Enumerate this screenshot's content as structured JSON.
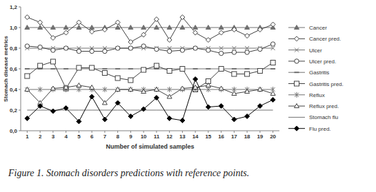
{
  "chart_data": {
    "type": "line",
    "x_label": "Number of simulated samples",
    "y_label": "Stomach disease metrics",
    "caption": "Figure 1. Stomach disorders predictions with reference points.",
    "categories": [
      "1",
      "2",
      "3",
      "4",
      "5",
      "6",
      "7",
      "8",
      "9",
      "10",
      "11",
      "12",
      "13",
      "14",
      "15",
      "16",
      "17",
      "18",
      "19",
      "20"
    ],
    "ylim": [
      0,
      1.2
    ],
    "yticks": [
      {
        "value": 0,
        "label": "0,0"
      },
      {
        "value": 0.2,
        "label": "0,2"
      },
      {
        "value": 0.4,
        "label": "0,4"
      },
      {
        "value": 0.6,
        "label": "0,6"
      },
      {
        "value": 0.8,
        "label": "0,8"
      },
      {
        "value": 1.0,
        "label": "1,0"
      },
      {
        "value": 1.2,
        "label": "1,2"
      }
    ],
    "grid": false,
    "legend": "right",
    "series": [
      {
        "name": "Cancer",
        "color": "#707070",
        "marker": "triangle",
        "values": [
          1,
          1,
          1,
          1,
          1,
          1,
          1,
          1,
          1,
          1,
          1,
          1,
          1,
          1,
          1,
          1,
          1,
          1,
          1,
          1
        ]
      },
      {
        "name": "Cancer pred.",
        "color": "#404040",
        "marker": "diamond-open",
        "values": [
          1.1,
          1.05,
          0.9,
          0.95,
          1.05,
          0.96,
          0.98,
          1.05,
          0.86,
          0.93,
          1.08,
          0.88,
          1.1,
          0.95,
          0.88,
          0.95,
          0.98,
          0.92,
          0.98,
          1.03
        ]
      },
      {
        "name": "Ulcer",
        "color": "#707070",
        "marker": "x",
        "values": [
          0.8,
          0.8,
          0.8,
          0.8,
          0.8,
          0.8,
          0.8,
          0.8,
          0.8,
          0.8,
          0.8,
          0.8,
          0.8,
          0.8,
          0.8,
          0.8,
          0.8,
          0.8,
          0.8,
          0.8
        ]
      },
      {
        "name": "Ulcer pred.",
        "color": "#404040",
        "marker": "circle-open",
        "values": [
          0.82,
          0.81,
          0.78,
          0.8,
          0.77,
          0.77,
          0.77,
          0.8,
          0.8,
          0.82,
          0.79,
          0.77,
          0.78,
          0.8,
          0.78,
          0.75,
          0.76,
          0.76,
          0.79,
          0.84
        ]
      },
      {
        "name": "Gastritis",
        "color": "#707070",
        "marker": "dash",
        "values": [
          0.6,
          0.6,
          0.6,
          0.6,
          0.6,
          0.6,
          0.6,
          0.6,
          0.6,
          0.6,
          0.6,
          0.6,
          0.6,
          0.6,
          0.6,
          0.6,
          0.6,
          0.6,
          0.6,
          0.6
        ]
      },
      {
        "name": "Gastritis pred.",
        "color": "#404040",
        "marker": "square-open",
        "values": [
          0.53,
          0.63,
          0.67,
          0.41,
          0.61,
          0.61,
          0.56,
          0.51,
          0.49,
          0.59,
          0.63,
          0.58,
          0.6,
          0.4,
          0.48,
          0.6,
          0.55,
          0.55,
          0.58,
          0.66
        ]
      },
      {
        "name": "Reflux",
        "color": "#707070",
        "marker": "star",
        "values": [
          0.4,
          0.4,
          0.4,
          0.4,
          0.4,
          0.4,
          0.4,
          0.4,
          0.4,
          0.4,
          0.4,
          0.4,
          0.4,
          0.4,
          0.4,
          0.4,
          0.4,
          0.4,
          0.4,
          0.4
        ]
      },
      {
        "name": "Reflux pred.",
        "color": "#404040",
        "marker": "triangle-open",
        "values": [
          0.4,
          0.27,
          0.41,
          0.42,
          0.44,
          0.42,
          0.27,
          0.4,
          0.4,
          0.38,
          0.4,
          0.33,
          0.41,
          0.42,
          0.44,
          0.41,
          0.36,
          0.38,
          0.4,
          0.36
        ]
      },
      {
        "name": "Stomach flu",
        "color": "#707070",
        "marker": "none",
        "values": [
          0.2,
          0.2,
          0.2,
          0.2,
          0.2,
          0.2,
          0.2,
          0.2,
          0.2,
          0.2,
          0.2,
          0.2,
          0.2,
          0.2,
          0.2,
          0.2,
          0.2,
          0.2,
          0.2,
          0.2
        ]
      },
      {
        "name": "Flu pred.",
        "color": "#000000",
        "marker": "diamond",
        "values": [
          0.12,
          0.24,
          0.19,
          0.22,
          0.09,
          0.33,
          0.11,
          0.27,
          0.14,
          0.21,
          0.32,
          0.12,
          0.1,
          0.5,
          0.23,
          0.24,
          0.11,
          0.14,
          0.24,
          0.3
        ]
      }
    ]
  }
}
